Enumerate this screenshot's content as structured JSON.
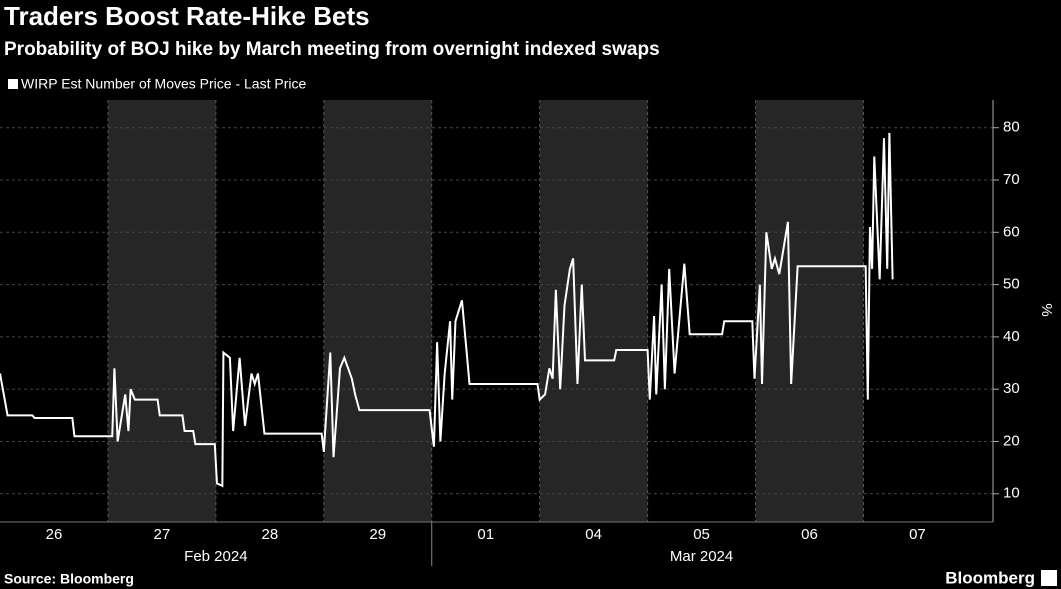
{
  "chart_data": {
    "type": "line",
    "title": "Traders Boost Rate-Hike Bets",
    "subtitle": "Probability of BOJ hike by March meeting from overnight indexed swaps",
    "source": "Source: Bloomberg",
    "brand": "Bloomberg",
    "y_label": "%",
    "categories": [
      "26",
      "27",
      "28",
      "29",
      "01",
      "04",
      "05",
      "06",
      "07"
    ],
    "x_groups": [
      "Feb 2024",
      "Mar 2024"
    ],
    "xlim": [
      0,
      9.2
    ],
    "ylim": [
      4.6,
      85.3
    ],
    "yticks": [
      10,
      20,
      30,
      40,
      50,
      60,
      70,
      80
    ],
    "grid": true,
    "series": [
      {
        "name": "WIRP Est Number of Moves Price - Last Price",
        "color": "#ffffff",
        "x": [
          0,
          0.07,
          0.3,
          0.32,
          0.67,
          0.69,
          1.04,
          1.06,
          1.09,
          1.16,
          1.19,
          1.21,
          1.25,
          1.46,
          1.48,
          1.69,
          1.71,
          1.79,
          1.81,
          1.99,
          2.01,
          2.06,
          2.07,
          2.13,
          2.16,
          2.22,
          2.27,
          2.33,
          2.36,
          2.39,
          2.45,
          2.98,
          3.0,
          3.06,
          3.09,
          3.15,
          3.19,
          3.26,
          3.29,
          3.33,
          3.98,
          4.02,
          4.05,
          4.08,
          4.12,
          4.17,
          4.19,
          4.22,
          4.28,
          4.35,
          4.98,
          5.0,
          5.05,
          5.09,
          5.12,
          5.15,
          5.19,
          5.23,
          5.28,
          5.31,
          5.35,
          5.39,
          5.42,
          5.69,
          5.71,
          6.0,
          6.02,
          6.06,
          6.08,
          6.13,
          6.16,
          6.2,
          6.25,
          6.34,
          6.39,
          6.69,
          6.71,
          6.97,
          6.99,
          7.04,
          7.06,
          7.1,
          7.15,
          7.18,
          7.22,
          7.3,
          7.33,
          7.39,
          8.02,
          8.04,
          8.06,
          8.08,
          8.1,
          8.15,
          8.19,
          8.22,
          8.24,
          8.27
        ],
        "values": [
          33,
          25,
          25,
          24.5,
          24.5,
          21,
          21,
          34,
          20,
          29,
          22,
          30,
          28,
          28,
          25,
          25,
          22,
          22,
          19.5,
          19.5,
          12,
          11.5,
          37,
          36,
          22,
          36,
          23,
          33,
          31,
          33,
          21.5,
          21.5,
          18,
          37,
          17,
          34,
          36,
          32,
          29,
          26,
          26,
          19,
          39,
          20,
          33,
          43,
          28,
          43,
          47,
          31,
          31,
          28,
          29,
          34,
          32,
          49,
          30,
          46,
          53,
          55,
          31,
          50,
          35.5,
          35.5,
          37.5,
          37.5,
          28,
          44,
          29,
          50,
          30,
          53,
          33,
          54,
          40.5,
          40.5,
          43,
          43,
          32,
          50,
          31,
          60,
          53,
          55,
          52,
          62,
          31,
          53.5,
          53.5,
          28,
          61,
          53,
          74.5,
          51,
          78,
          53,
          79,
          51
        ]
      }
    ]
  }
}
